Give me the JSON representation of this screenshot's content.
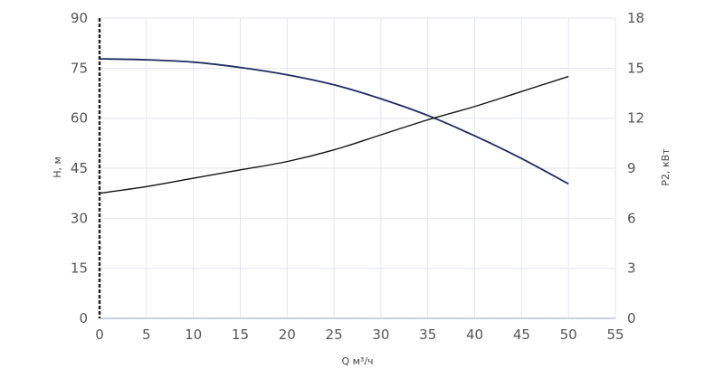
{
  "chart_data": {
    "type": "line",
    "xlabel": "Q м³/ч",
    "ylabel_left": "H, м",
    "ylabel_right": "P2, кВт",
    "xlim": [
      0,
      55
    ],
    "ylim_left": [
      0,
      90
    ],
    "ylim_right": [
      0,
      18
    ],
    "x_ticks": [
      0,
      5,
      10,
      15,
      20,
      25,
      30,
      35,
      40,
      45,
      50,
      55
    ],
    "y_ticks_left": [
      0,
      15,
      30,
      45,
      60,
      75,
      90
    ],
    "y_ticks_right": [
      0,
      3,
      6,
      9,
      12,
      15,
      18
    ],
    "grid": true,
    "legend": "none",
    "colors": {
      "H": "#1e2b63",
      "P2": "#111111",
      "grid": "#e3e6ee",
      "axis": "#c9d3e6"
    },
    "series": [
      {
        "axis": "left",
        "x": [
          0,
          5,
          10,
          15,
          20,
          25,
          30,
          35,
          40,
          45,
          50
        ],
        "values": [
          77.8,
          77.5,
          76.8,
          75.2,
          73.0,
          70.0,
          65.8,
          60.8,
          54.7,
          47.9,
          40.3
        ]
      },
      {
        "axis": "right",
        "x": [
          0,
          5,
          10,
          15,
          20,
          25,
          30,
          35,
          40,
          45,
          50
        ],
        "values": [
          7.5,
          7.9,
          8.4,
          8.9,
          9.4,
          10.1,
          11.0,
          11.9,
          12.7,
          13.6,
          14.5
        ]
      }
    ]
  }
}
